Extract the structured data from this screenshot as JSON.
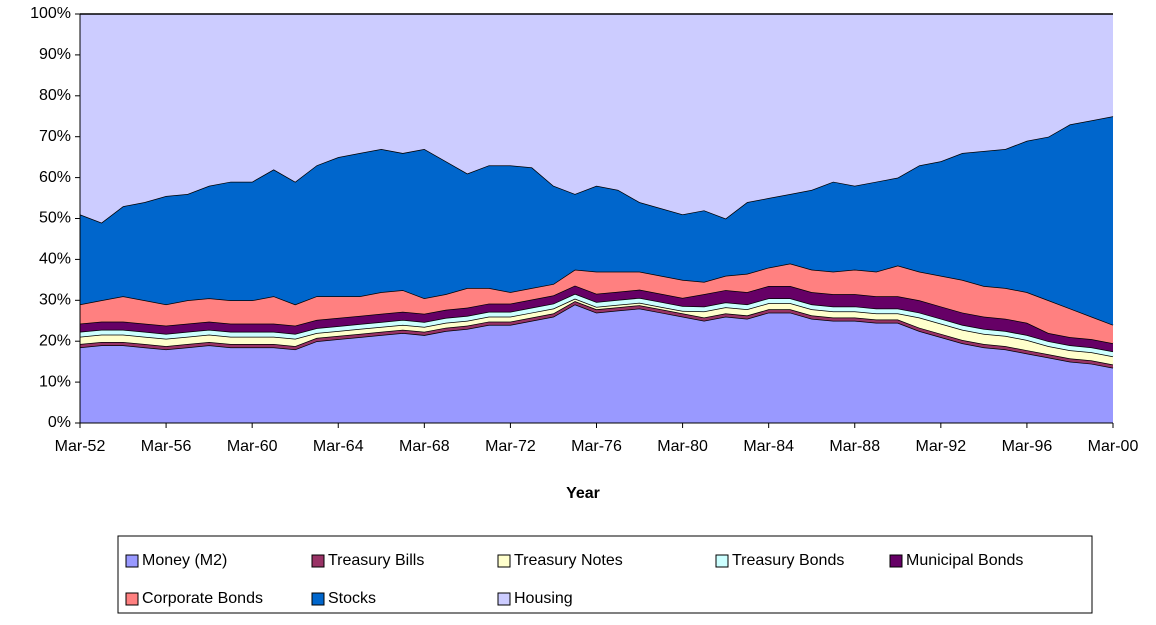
{
  "chart_data": {
    "type": "stacked-area",
    "x_label": "Year",
    "categories": [
      "Mar-52",
      null,
      null,
      null,
      "Mar-56",
      null,
      null,
      null,
      "Mar-60",
      null,
      null,
      null,
      "Mar-64",
      null,
      null,
      null,
      "Mar-68",
      null,
      null,
      null,
      "Mar-72",
      null,
      null,
      null,
      "Mar-76",
      null,
      null,
      null,
      "Mar-80",
      null,
      null,
      null,
      "Mar-84",
      null,
      null,
      null,
      "Mar-88",
      null,
      null,
      null,
      "Mar-92",
      null,
      null,
      null,
      "Mar-96",
      null,
      null,
      null,
      "Mar-00"
    ],
    "ylim": [
      0,
      100
    ],
    "yticks": [
      {
        "value": 0,
        "label": "0%"
      },
      {
        "value": 10,
        "label": "10%"
      },
      {
        "value": 20,
        "label": "20%"
      },
      {
        "value": 30,
        "label": "30%"
      },
      {
        "value": 40,
        "label": "40%"
      },
      {
        "value": 50,
        "label": "50%"
      },
      {
        "value": 60,
        "label": "60%"
      },
      {
        "value": 70,
        "label": "70%"
      },
      {
        "value": 80,
        "label": "80%"
      },
      {
        "value": 90,
        "label": "90%"
      },
      {
        "value": 100,
        "label": "100%"
      }
    ],
    "series": [
      {
        "name": "Money (M2)",
        "color": "#9999ff",
        "values": [
          18.5,
          19,
          19,
          18.5,
          18,
          18.5,
          19,
          18.5,
          18.5,
          18.5,
          18,
          20,
          20.5,
          21,
          21.5,
          22,
          21.5,
          22.5,
          23,
          24,
          24,
          25,
          26,
          29,
          27,
          27.5,
          28,
          27,
          26,
          25,
          26,
          25.5,
          27,
          27,
          25.5,
          25,
          25,
          24.5,
          24.5,
          22.5,
          21,
          19.5,
          18.5,
          18,
          17,
          16,
          15,
          14.5,
          13.5
        ]
      },
      {
        "name": "Treasury Bills",
        "color": "#993366",
        "values": [
          0.8,
          0.8,
          0.8,
          0.8,
          0.8,
          0.8,
          0.8,
          0.8,
          0.8,
          0.8,
          0.8,
          0.8,
          0.8,
          0.8,
          0.8,
          0.8,
          0.8,
          0.8,
          0.8,
          0.8,
          0.8,
          0.8,
          0.8,
          0.8,
          0.8,
          0.8,
          0.8,
          0.8,
          0.8,
          0.8,
          0.8,
          0.8,
          0.8,
          0.8,
          0.8,
          0.8,
          0.8,
          0.8,
          0.8,
          0.8,
          0.8,
          0.8,
          0.8,
          0.8,
          0.8,
          0.8,
          0.8,
          0.8,
          0.8
        ]
      },
      {
        "name": "Treasury Notes",
        "color": "#ffffcc",
        "values": [
          1.8,
          1.8,
          1.8,
          1.8,
          1.8,
          1.8,
          1.8,
          1.8,
          1.8,
          1.8,
          1.8,
          1.2,
          1.2,
          1.2,
          1.2,
          1.2,
          1.2,
          1.2,
          1.2,
          1.2,
          1.2,
          1.2,
          1.2,
          0.6,
          0.6,
          0.6,
          0.6,
          0.6,
          0.6,
          1.5,
          1.5,
          1.5,
          1.5,
          1.5,
          1.5,
          1.5,
          1.5,
          1.5,
          1.5,
          2.5,
          2.5,
          2.5,
          2.5,
          2.5,
          2.5,
          2,
          2,
          2,
          2
        ]
      },
      {
        "name": "Treasury Bonds",
        "color": "#ccffff",
        "values": [
          1.2,
          1.2,
          1.2,
          1.2,
          1.2,
          1.2,
          1.2,
          1.2,
          1.2,
          1.2,
          1.2,
          1.2,
          1.2,
          1.2,
          1.2,
          1.2,
          1.2,
          1.2,
          1.2,
          1.2,
          1.2,
          1.2,
          1.2,
          1.2,
          1.2,
          1.2,
          1.2,
          1.2,
          1.2,
          1.2,
          1.2,
          1.2,
          1.2,
          1.2,
          1.2,
          1.2,
          1.2,
          1.2,
          1.2,
          1.2,
          1.2,
          1.2,
          1.2,
          1.2,
          1.2,
          1.2,
          1.2,
          1.2,
          1.2
        ]
      },
      {
        "name": "Municipal Bonds",
        "color": "#660066",
        "values": [
          2,
          2,
          2,
          2,
          2,
          2,
          2,
          2,
          2,
          2,
          2,
          2,
          2,
          2,
          2,
          2,
          2,
          2,
          2,
          2,
          2,
          2,
          2,
          2,
          2,
          2,
          2,
          2,
          2,
          3,
          3,
          3,
          3,
          3,
          3,
          3,
          3,
          3,
          3,
          3,
          3,
          3,
          3,
          3,
          3,
          2,
          2,
          2,
          2
        ]
      },
      {
        "name": "Corporate Bonds",
        "color": "#ff8080",
        "values": [
          4.7,
          5.2,
          6.2,
          5.7,
          5.2,
          5.7,
          5.7,
          5.7,
          5.7,
          6.7,
          5.2,
          5.8,
          5.3,
          4.8,
          5.3,
          5.3,
          3.8,
          3.8,
          4.8,
          3.8,
          2.8,
          2.8,
          2.8,
          3.9,
          5.4,
          4.9,
          4.4,
          4.4,
          4.4,
          3,
          3.5,
          4.5,
          4.5,
          5.5,
          5.5,
          5.5,
          6,
          6,
          7.5,
          7,
          7.5,
          8,
          7.5,
          7.5,
          7.5,
          8,
          7,
          5.5,
          4.5
        ]
      },
      {
        "name": "Stocks",
        "color": "#0066cc",
        "values": [
          22,
          19,
          22,
          24,
          26.5,
          26,
          27.5,
          29,
          29,
          31,
          30,
          32,
          34,
          35,
          35,
          33.5,
          36.5,
          32.5,
          28,
          30,
          31,
          29.5,
          24,
          18.5,
          21,
          20,
          17,
          16.5,
          16,
          17.5,
          14,
          17.5,
          17,
          17,
          19.5,
          22,
          20.5,
          22,
          21.5,
          26,
          28,
          31,
          33,
          34,
          37,
          40,
          45,
          48,
          51
        ]
      },
      {
        "name": "Housing",
        "color": "#ccccff",
        "values": [
          49,
          51,
          47,
          46,
          44.5,
          44,
          42,
          41,
          41,
          38,
          41,
          37,
          35,
          34,
          33,
          34,
          33,
          36,
          39,
          37,
          37,
          37.5,
          42,
          44,
          42,
          43,
          46,
          47.5,
          49,
          48,
          50,
          46,
          45,
          44,
          43,
          41,
          42,
          41,
          40,
          37,
          36,
          34,
          33.5,
          33,
          31,
          30,
          27,
          26,
          25
        ]
      }
    ]
  }
}
